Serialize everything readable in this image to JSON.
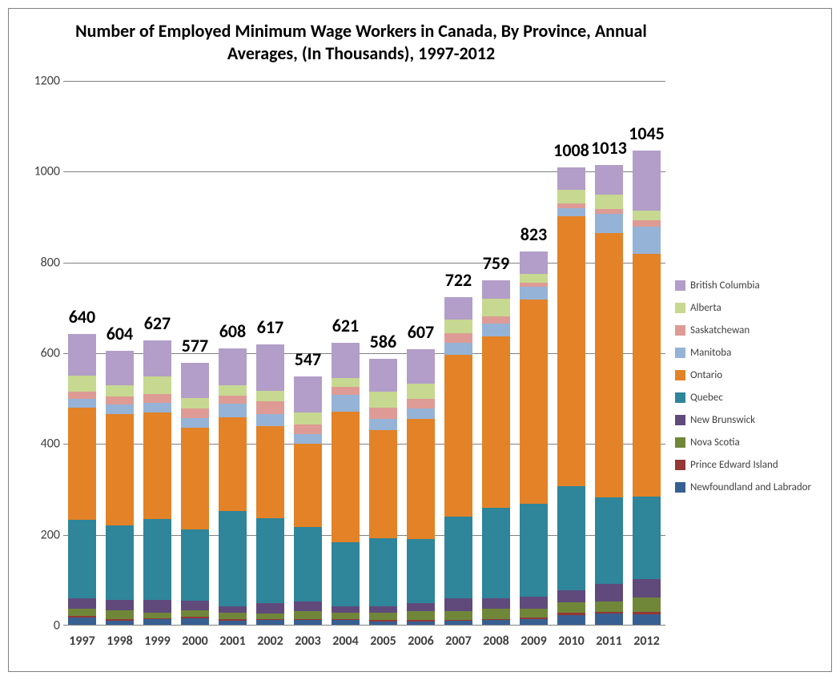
{
  "title": "Number of Employed Minimum Wage Workers in Canada, By Province, Annual Averages, (In Thousands), 1997-2012",
  "title_fontsize": 22,
  "axis_fontsize": 16,
  "legend_fontsize": 13,
  "total_label_fontsize": 22,
  "xtick_fontsize": 16,
  "background_color": "#ffffff",
  "gridline_color": "#808080",
  "text_color": "#404040",
  "ylim": [
    0,
    1200
  ],
  "ytick_step": 200,
  "yticks": [
    0,
    200,
    400,
    600,
    800,
    1000,
    1200
  ],
  "bar_width": 0.74,
  "series": [
    {
      "name": "British Columbia",
      "color": "#b29ec8"
    },
    {
      "name": "Alberta",
      "color": "#c7d890"
    },
    {
      "name": "Saskatchewan",
      "color": "#de9b95"
    },
    {
      "name": "Manitoba",
      "color": "#95b3d7"
    },
    {
      "name": "Ontario",
      "color": "#e38227"
    },
    {
      "name": "Quebec",
      "color": "#2f8599"
    },
    {
      "name": "New Brunswick",
      "color": "#604a7b"
    },
    {
      "name": "Nova Scotia",
      "color": "#70873a"
    },
    {
      "name": "Prince Edward Island",
      "color": "#953735"
    },
    {
      "name": "Newfoundland and Labrador",
      "color": "#376092"
    }
  ],
  "years": [
    "1997",
    "1998",
    "1999",
    "2000",
    "2001",
    "2002",
    "2003",
    "2004",
    "2005",
    "2006",
    "2007",
    "2008",
    "2009",
    "2010",
    "2011",
    "2012"
  ],
  "totals": [
    640,
    604,
    627,
    577,
    608,
    617,
    547,
    621,
    586,
    607,
    722,
    759,
    823,
    1008,
    1013,
    1045
  ],
  "data": {
    "Newfoundland and Labrador": [
      16,
      9,
      12,
      14,
      9,
      10,
      10,
      10,
      7,
      7,
      8,
      10,
      12,
      22,
      24,
      23
    ],
    "Prince Edward Island": [
      3,
      3,
      3,
      3,
      3,
      3,
      3,
      3,
      3,
      3,
      2,
      3,
      4,
      4,
      4,
      5
    ],
    "Nova Scotia": [
      16,
      20,
      12,
      14,
      15,
      12,
      17,
      14,
      17,
      20,
      20,
      22,
      20,
      24,
      24,
      32
    ],
    "New Brunswick": [
      24,
      22,
      27,
      22,
      14,
      22,
      22,
      14,
      14,
      18,
      28,
      23,
      26,
      26,
      38,
      40
    ],
    "Quebec": [
      172,
      165,
      179,
      157,
      210,
      187,
      164,
      141,
      149,
      141,
      181,
      200,
      204,
      230,
      190,
      182
    ],
    "Ontario": [
      247,
      246,
      234,
      225,
      206,
      204,
      183,
      288,
      239,
      265,
      356,
      377,
      451,
      594,
      583,
      535
    ],
    "Manitoba": [
      20,
      20,
      22,
      20,
      30,
      27,
      21,
      36,
      24,
      23,
      27,
      28,
      28,
      18,
      43,
      60
    ],
    "Saskatchewan": [
      16,
      18,
      20,
      22,
      18,
      28,
      22,
      18,
      26,
      20,
      20,
      16,
      8,
      10,
      10,
      15
    ],
    "Alberta": [
      35,
      24,
      38,
      22,
      23,
      22,
      25,
      20,
      34,
      35,
      30,
      40,
      20,
      30,
      32,
      20
    ],
    "British Columbia": [
      91,
      77,
      80,
      78,
      80,
      102,
      80,
      77,
      73,
      75,
      50,
      40,
      50,
      50,
      65,
      133
    ]
  }
}
